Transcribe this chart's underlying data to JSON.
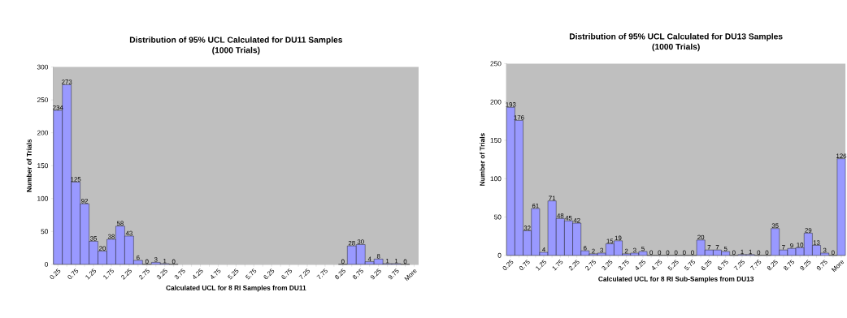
{
  "chart_data": [
    {
      "type": "bar",
      "title": "Distribution of 95% UCL Calculated for DU11 Samples",
      "subtitle": "(1000 Trials)",
      "xlabel": "Calculated UCL for 8 RI Samples from DU11",
      "ylabel": "Number of Trials",
      "categories": [
        "0.25",
        null,
        "0.75",
        null,
        "1.25",
        null,
        "1.75",
        null,
        "2.25",
        null,
        "2.75",
        null,
        "3.25",
        null,
        "3.75",
        null,
        "4.25",
        null,
        "4.75",
        null,
        "5.25",
        null,
        "5.75",
        null,
        "6.25",
        null,
        "6.75",
        null,
        "7.25",
        null,
        "7.75",
        null,
        "8.25",
        null,
        "8.75",
        null,
        "9.25",
        null,
        "9.75",
        null,
        "More"
      ],
      "values": [
        234,
        273,
        125,
        92,
        35,
        20,
        38,
        58,
        43,
        6,
        0,
        3,
        1,
        0,
        null,
        null,
        null,
        null,
        null,
        null,
        null,
        null,
        null,
        null,
        null,
        null,
        null,
        null,
        null,
        null,
        null,
        null,
        0,
        28,
        30,
        4,
        8,
        1,
        1,
        0,
        null
      ],
      "color": "#9999ff",
      "ylim": [
        0,
        300
      ],
      "yticks": [
        0,
        50,
        100,
        150,
        200,
        250,
        300
      ],
      "data_labels": true
    },
    {
      "type": "bar",
      "title": "Distribution of 95% UCL Calculated for DU13 Samples",
      "subtitle": "(1000 Trials)",
      "xlabel": "Calculated UCL for 8 RI Sub-Samples from DU13",
      "ylabel": "Number of Trials",
      "categories": [
        "0.25",
        null,
        "0.75",
        null,
        "1.25",
        null,
        "1.75",
        null,
        "2.25",
        null,
        "2.75",
        null,
        "3.25",
        null,
        "3.75",
        null,
        "4.25",
        null,
        "4.75",
        null,
        "5.25",
        null,
        "5.75",
        null,
        "6.25",
        null,
        "6.75",
        null,
        "7.25",
        null,
        "7.75",
        null,
        "8.25",
        null,
        "8.75",
        null,
        "9.25",
        null,
        "9.75",
        null,
        "More"
      ],
      "values": [
        193,
        176,
        32,
        61,
        4,
        71,
        48,
        45,
        42,
        6,
        2,
        3,
        15,
        19,
        2,
        3,
        5,
        0,
        0,
        0,
        0,
        0,
        0,
        20,
        7,
        7,
        5,
        0,
        1,
        1,
        0,
        0,
        35,
        7,
        9,
        10,
        29,
        13,
        3,
        0,
        126
      ],
      "color": "#9999ff",
      "ylim": [
        0,
        250
      ],
      "yticks": [
        0,
        50,
        100,
        150,
        200,
        250
      ],
      "data_labels": true
    }
  ]
}
